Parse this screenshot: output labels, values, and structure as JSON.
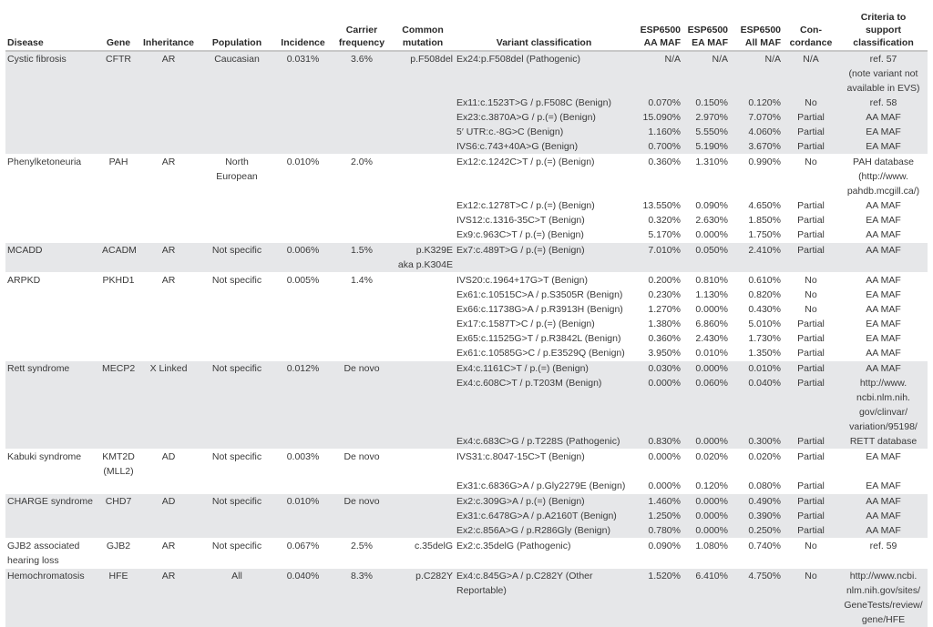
{
  "header": [
    "Disease",
    "Gene",
    "Inheritance",
    "Population",
    "Incidence",
    "Carrier\nfrequency",
    "Common\nmutation",
    "Variant classification",
    "ESP6500\nAA MAF",
    "ESP6500\nEA MAF",
    "ESP6500\nAll MAF",
    "Con-\ncordance",
    "Criteria to\nsupport\nclassification"
  ],
  "shade_color": "#e6e7e9",
  "groups": [
    {
      "disease": "Cystic fibrosis",
      "gene": "CFTR",
      "inheritance": "AR",
      "population": "Caucasian",
      "incidence": "0.031%",
      "carrier": "3.6%",
      "common": "p.F508del",
      "shaded": true,
      "variants": [
        [
          "Ex24:p.F508del (Pathogenic)",
          "N/A",
          "N/A",
          "N/A",
          "N/A",
          "ref. 57\n(note variant not\navailable in EVS)"
        ],
        [
          "Ex11:c.1523T>G / p.F508C (Benign)",
          "0.070%",
          "0.150%",
          "0.120%",
          "No",
          "ref. 58"
        ],
        [
          "Ex23:c.3870A>G / p.(=) (Benign)",
          "15.090%",
          "2.970%",
          "7.070%",
          "Partial",
          "AA MAF"
        ],
        [
          "5′ UTR:c.-8G>C (Benign)",
          "1.160%",
          "5.550%",
          "4.060%",
          "Partial",
          "EA MAF"
        ],
        [
          "IVS6:c.743+40A>G (Benign)",
          "0.700%",
          "5.190%",
          "3.670%",
          "Partial",
          "EA MAF"
        ]
      ]
    },
    {
      "disease": "Phenylketoneuria",
      "gene": "PAH",
      "inheritance": "AR",
      "population": "North\nEuropean",
      "incidence": "0.010%",
      "carrier": "2.0%",
      "common": "",
      "shaded": false,
      "variants": [
        [
          "Ex12:c.1242C>T / p.(=) (Benign)",
          "0.360%",
          "1.310%",
          "0.990%",
          "No",
          "PAH database\n(http://www.\npahdb.mcgill.ca/)"
        ],
        [
          "Ex12:c.1278T>C / p.(=) (Benign)",
          "13.550%",
          "0.090%",
          "4.650%",
          "Partial",
          "AA MAF"
        ],
        [
          "IVS12:c.1316-35C>T (Benign)",
          "0.320%",
          "2.630%",
          "1.850%",
          "Partial",
          "EA MAF"
        ],
        [
          "Ex9:c.963C>T / p.(=) (Benign)",
          "5.170%",
          "0.000%",
          "1.750%",
          "Partial",
          "AA MAF"
        ]
      ]
    },
    {
      "disease": "MCADD",
      "gene": "ACADM",
      "inheritance": "AR",
      "population": "Not specific",
      "incidence": "0.006%",
      "carrier": "1.5%",
      "common": "p.K329E\naka p.K304E",
      "shaded": true,
      "variants": [
        [
          "Ex7:c.489T>G / p.(=) (Benign)",
          "7.010%",
          "0.050%",
          "2.410%",
          "Partial",
          "AA MAF"
        ]
      ]
    },
    {
      "disease": "ARPKD",
      "gene": "PKHD1",
      "inheritance": "AR",
      "population": "Not specific",
      "incidence": "0.005%",
      "carrier": "1.4%",
      "common": "",
      "shaded": false,
      "variants": [
        [
          "IVS20:c.1964+17G>T (Benign)",
          "0.200%",
          "0.810%",
          "0.610%",
          "No",
          "AA MAF"
        ],
        [
          "Ex61:c.10515C>A / p.S3505R (Benign)",
          "0.230%",
          "1.130%",
          "0.820%",
          "No",
          "EA MAF"
        ],
        [
          "Ex66:c.11738G>A / p.R3913H (Benign)",
          "1.270%",
          "0.000%",
          "0.430%",
          "No",
          "AA MAF"
        ],
        [
          "Ex17:c.1587T>C / p.(=) (Benign)",
          "1.380%",
          "6.860%",
          "5.010%",
          "Partial",
          "EA MAF"
        ],
        [
          "Ex65:c.11525G>T / p.R3842L (Benign)",
          "0.360%",
          "2.430%",
          "1.730%",
          "Partial",
          "EA MAF"
        ],
        [
          "Ex61:c.10585G>C / p.E3529Q (Benign)",
          "3.950%",
          "0.010%",
          "1.350%",
          "Partial",
          "AA MAF"
        ]
      ]
    },
    {
      "disease": "Rett syndrome",
      "gene": "MECP2",
      "inheritance": "X Linked",
      "population": "Not specific",
      "incidence": "0.012%",
      "carrier": "De novo",
      "common": "",
      "shaded": true,
      "variants": [
        [
          "Ex4:c.1161C>T / p.(=) (Benign)",
          "0.030%",
          "0.000%",
          "0.010%",
          "Partial",
          "AA MAF"
        ],
        [
          "Ex4:c.608C>T / p.T203M (Benign)",
          "0.000%",
          "0.060%",
          "0.040%",
          "Partial",
          "http://www.\nncbi.nlm.nih.\ngov/clinvar/\nvariation/95198/"
        ],
        [
          "Ex4:c.683C>G / p.T228S (Pathogenic)",
          "0.830%",
          "0.000%",
          "0.300%",
          "Partial",
          "RETT database"
        ]
      ]
    },
    {
      "disease": "Kabuki syndrome",
      "gene": "KMT2D\n(MLL2)",
      "inheritance": "AD",
      "population": "Not specific",
      "incidence": "0.003%",
      "carrier": "De novo",
      "common": "",
      "shaded": false,
      "variants": [
        [
          "IVS31:c.8047-15C>T (Benign)",
          "0.000%",
          "0.020%",
          "0.020%",
          "Partial",
          "EA MAF"
        ],
        [
          "Ex31:c.6836G>A / p.Gly2279E (Benign)",
          "0.000%",
          "0.120%",
          "0.080%",
          "Partial",
          "EA MAF"
        ]
      ]
    },
    {
      "disease": "CHARGE syndrome",
      "gene": "CHD7",
      "inheritance": "AD",
      "population": "Not specific",
      "incidence": "0.010%",
      "carrier": "De novo",
      "common": "",
      "shaded": true,
      "variants": [
        [
          "Ex2:c.309G>A / p.(=) (Benign)",
          "1.460%",
          "0.000%",
          "0.490%",
          "Partial",
          "AA MAF"
        ],
        [
          "Ex31:c.6478G>A / p.A2160T (Benign)",
          "1.250%",
          "0.000%",
          "0.390%",
          "Partial",
          "AA MAF"
        ],
        [
          "Ex2:c.856A>G / p.R286Gly (Benign)",
          "0.780%",
          "0.000%",
          "0.250%",
          "Partial",
          "AA MAF"
        ]
      ]
    },
    {
      "disease": "GJB2 associated\nhearing loss",
      "gene": "GJB2",
      "inheritance": "AR",
      "population": "Not specific",
      "incidence": "0.067%",
      "carrier": "2.5%",
      "common": "c.35delG",
      "shaded": false,
      "variants": [
        [
          "Ex2:c.35delG (Pathogenic)",
          "0.090%",
          "1.080%",
          "0.740%",
          "No",
          "ref. 59"
        ]
      ]
    },
    {
      "disease": "Hemochromatosis",
      "gene": "HFE",
      "inheritance": "AR",
      "population": "All",
      "incidence": "0.040%",
      "carrier": "8.3%",
      "common": "p.C282Y",
      "shaded": true,
      "variants": [
        [
          "Ex4:c.845G>A / p.C282Y (Other\nReportable)",
          "1.520%",
          "6.410%",
          "4.750%",
          "No",
          "http://www.ncbi.\nnlm.nih.gov/sites/\nGeneTests/review/\ngene/HFE"
        ]
      ]
    }
  ]
}
